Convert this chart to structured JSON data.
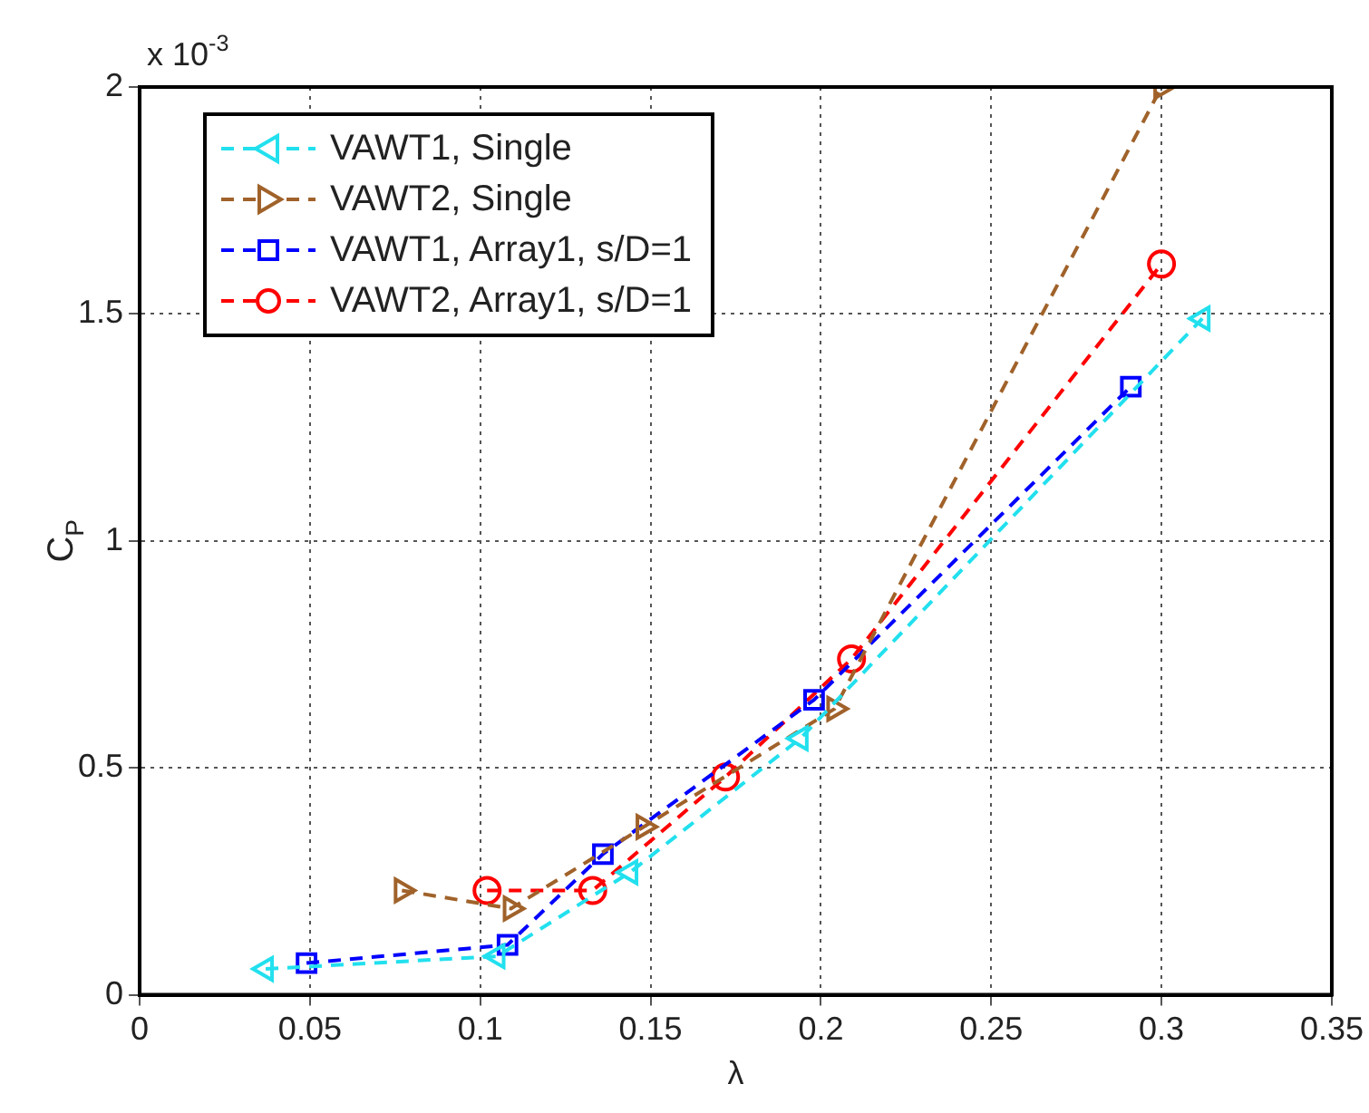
{
  "chart_data": {
    "type": "line",
    "xlabel": "λ",
    "ylabel": "C$_{P}$",
    "annotations": [
      "x 10$^{-3}$"
    ],
    "xlim": [
      0,
      0.35
    ],
    "xticks": [
      0,
      0.05,
      0.1,
      0.15,
      0.2,
      0.25,
      0.3,
      {
        "value": 0.35,
        "label": "0.35"
      }
    ],
    "ylim": [
      0,
      2
    ],
    "yticks": [
      0,
      0.5,
      1,
      1.5,
      2
    ],
    "grid": true,
    "legend": "top left",
    "line_style": "dashed",
    "series": [
      {
        "name": "VAWT1, Single",
        "color": "#22e0ee",
        "marker": "triangle-left",
        "x": [
          0.037,
          0.105,
          0.144,
          0.194,
          0.312
        ],
        "values": [
          0.057,
          0.085,
          0.27,
          0.565,
          1.49
        ]
      },
      {
        "name": "VAWT2, Single",
        "color": "#a0622a",
        "marker": "triangle-right",
        "x": [
          0.077,
          0.109,
          0.148,
          0.204,
          0.3
        ],
        "values": [
          0.23,
          0.19,
          0.37,
          0.63,
          2.0
        ]
      },
      {
        "name": "VAWT1, Array1, s/D=1",
        "color": "#0000ff",
        "marker": "square",
        "x": [
          0.049,
          0.108,
          0.136,
          0.198,
          0.291
        ],
        "values": [
          0.07,
          0.11,
          0.31,
          0.65,
          1.34
        ]
      },
      {
        "name": "VAWT2, Array1, s/D=1",
        "color": "#ff0000",
        "marker": "circle",
        "x": [
          0.102,
          0.133,
          0.172,
          0.209,
          0.3
        ],
        "values": [
          0.23,
          0.23,
          0.48,
          0.74,
          1.61
        ]
      }
    ]
  }
}
